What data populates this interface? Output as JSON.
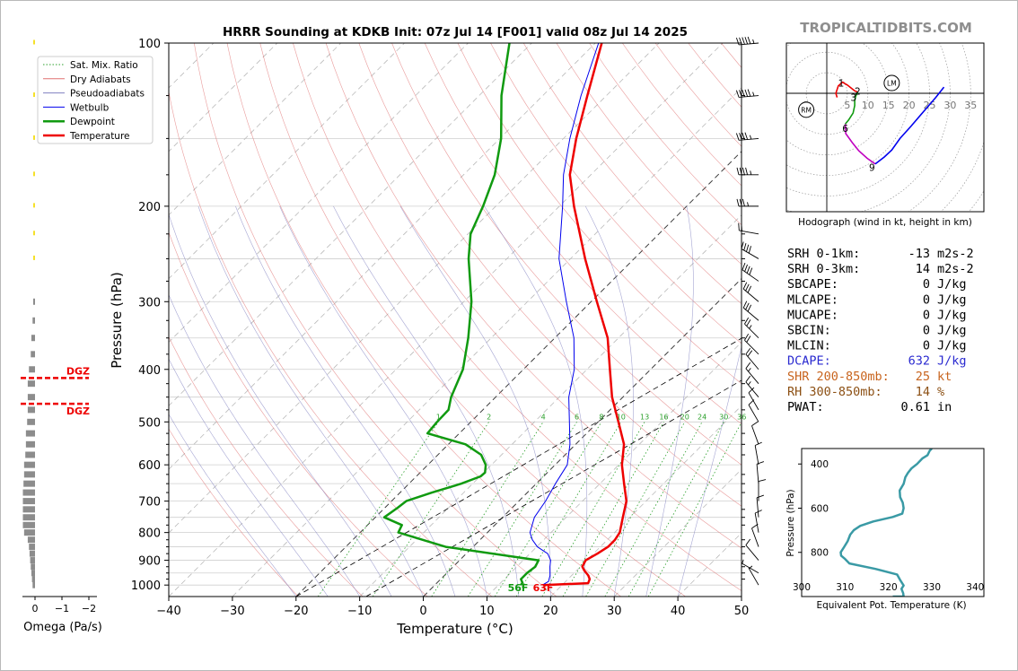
{
  "chart_data": [
    {
      "type": "line",
      "panel": "skew-t",
      "title": "HRRR Sounding at KDKB Init: 07z Jul 14 [F001] valid 08z Jul 14 2025",
      "xlabel": "Temperature (°C)",
      "ylabel": "Pressure (hPa)",
      "xlim": [
        -40,
        50
      ],
      "ylim": [
        1050,
        100
      ],
      "y_scale": "log",
      "x_ticks": [
        "−40",
        "−30",
        "−20",
        "−10",
        "0",
        "10",
        "20",
        "30",
        "40",
        "50"
      ],
      "y_ticks": [
        "100",
        "200",
        "300",
        "400",
        "500",
        "600",
        "700",
        "800",
        "900",
        "1000"
      ],
      "legend": {
        "placement": "top-left",
        "entries": [
          {
            "label": "Sat. Mix. Ratio",
            "color": "#2ca02c",
            "style": "dotted"
          },
          {
            "label": "Dry Adiabats",
            "color": "#e07070",
            "style": "solid"
          },
          {
            "label": "Pseudoadiabats",
            "color": "#8080c0",
            "style": "solid"
          },
          {
            "label": "Wetbulb",
            "color": "#0000ee",
            "style": "solid"
          },
          {
            "label": "Dewpoint",
            "color": "#109a10",
            "style": "thick"
          },
          {
            "label": "Temperature",
            "color": "#ee0000",
            "style": "thick"
          }
        ]
      },
      "mixing_ratio_labels": [
        "1",
        "2",
        "4",
        "6",
        "8",
        "10",
        "13",
        "16",
        "20",
        "24",
        "30",
        "36"
      ],
      "surface_labels": {
        "dewpoint": "56F",
        "temperature": "63F"
      },
      "series": [
        {
          "name": "Temperature",
          "color": "#ee0000",
          "points": [
            [
              1000,
              17.0
            ],
            [
              992,
              23.8
            ],
            [
              975,
              23.4
            ],
            [
              960,
              22.6
            ],
            [
              940,
              21.2
            ],
            [
              925,
              20.3
            ],
            [
              900,
              19.8
            ],
            [
              875,
              20.6
            ],
            [
              850,
              21.2
            ],
            [
              825,
              21.2
            ],
            [
              800,
              20.8
            ],
            [
              750,
              18.9
            ],
            [
              700,
              16.9
            ],
            [
              650,
              13.8
            ],
            [
              600,
              10.5
            ],
            [
              550,
              7.6
            ],
            [
              500,
              3.2
            ],
            [
              450,
              -1.7
            ],
            [
              400,
              -6.4
            ],
            [
              350,
              -11.7
            ],
            [
              300,
              -19.1
            ],
            [
              250,
              -27.7
            ],
            [
              200,
              -37.7
            ],
            [
              175,
              -43.3
            ],
            [
              150,
              -48.0
            ],
            [
              125,
              -53.0
            ],
            [
              100,
              -59.0
            ]
          ]
        },
        {
          "name": "Wetbulb",
          "color": "#0000ee",
          "points": [
            [
              1000,
              16.9
            ],
            [
              985,
              17.3
            ],
            [
              960,
              16.6
            ],
            [
              925,
              15.2
            ],
            [
              900,
              14.3
            ],
            [
              875,
              12.8
            ],
            [
              850,
              10.1
            ],
            [
              825,
              8.2
            ],
            [
              800,
              6.7
            ],
            [
              750,
              5.0
            ],
            [
              700,
              4.2
            ],
            [
              650,
              3.0
            ],
            [
              600,
              1.9
            ],
            [
              550,
              -0.9
            ],
            [
              500,
              -4.5
            ],
            [
              450,
              -8.5
            ],
            [
              400,
              -12.0
            ],
            [
              350,
              -17.0
            ],
            [
              300,
              -23.9
            ],
            [
              250,
              -31.8
            ],
            [
              200,
              -39.5
            ],
            [
              175,
              -44.3
            ],
            [
              150,
              -49.0
            ],
            [
              125,
              -54.0
            ],
            [
              100,
              -59.5
            ]
          ]
        },
        {
          "name": "Dewpoint",
          "color": "#109a10",
          "points": [
            [
              1000,
              13.5
            ],
            [
              990,
              13.4
            ],
            [
              975,
              12.6
            ],
            [
              950,
              12.6
            ],
            [
              925,
              12.9
            ],
            [
              900,
              12.4
            ],
            [
              850,
              -4.3
            ],
            [
              800,
              -14.0
            ],
            [
              775,
              -14.6
            ],
            [
              750,
              -18.6
            ],
            [
              720,
              -18.0
            ],
            [
              700,
              -17.7
            ],
            [
              675,
              -15.0
            ],
            [
              650,
              -11.8
            ],
            [
              630,
              -9.9
            ],
            [
              620,
              -9.8
            ],
            [
              600,
              -10.9
            ],
            [
              575,
              -13.2
            ],
            [
              550,
              -17.3
            ],
            [
              525,
              -25.0
            ],
            [
              500,
              -25.3
            ],
            [
              475,
              -25.4
            ],
            [
              450,
              -27.0
            ],
            [
              400,
              -29.5
            ],
            [
              350,
              -33.6
            ],
            [
              300,
              -38.8
            ],
            [
              250,
              -46.0
            ],
            [
              225,
              -49.6
            ],
            [
              200,
              -52.0
            ],
            [
              175,
              -55.1
            ],
            [
              150,
              -59.8
            ],
            [
              125,
              -66.5
            ],
            [
              100,
              -73.5
            ]
          ]
        }
      ],
      "wind_barbs_kt": [
        {
          "p": 100,
          "speed": 55,
          "dir": 265
        },
        {
          "p": 125,
          "speed": 55,
          "dir": 265
        },
        {
          "p": 150,
          "speed": 45,
          "dir": 265
        },
        {
          "p": 175,
          "speed": 45,
          "dir": 270
        },
        {
          "p": 200,
          "speed": 35,
          "dir": 270
        },
        {
          "p": 225,
          "speed": 20,
          "dir": 280
        },
        {
          "p": 250,
          "speed": 40,
          "dir": 300
        },
        {
          "p": 275,
          "speed": 40,
          "dir": 305
        },
        {
          "p": 300,
          "speed": 30,
          "dir": 310
        },
        {
          "p": 325,
          "speed": 30,
          "dir": 310
        },
        {
          "p": 350,
          "speed": 25,
          "dir": 315
        },
        {
          "p": 375,
          "speed": 20,
          "dir": 315
        },
        {
          "p": 400,
          "speed": 20,
          "dir": 320
        },
        {
          "p": 425,
          "speed": 15,
          "dir": 320
        },
        {
          "p": 450,
          "speed": 15,
          "dir": 320
        },
        {
          "p": 475,
          "speed": 10,
          "dir": 330
        },
        {
          "p": 500,
          "speed": 10,
          "dir": 330
        },
        {
          "p": 550,
          "speed": 10,
          "dir": 340
        },
        {
          "p": 600,
          "speed": 10,
          "dir": 350
        },
        {
          "p": 650,
          "speed": 10,
          "dir": 355
        },
        {
          "p": 700,
          "speed": 10,
          "dir": 360
        },
        {
          "p": 750,
          "speed": 10,
          "dir": 355
        },
        {
          "p": 800,
          "speed": 10,
          "dir": 350
        },
        {
          "p": 850,
          "speed": 10,
          "dir": 340
        },
        {
          "p": 900,
          "speed": 10,
          "dir": 320
        },
        {
          "p": 950,
          "speed": 5,
          "dir": 300
        },
        {
          "p": 1000,
          "speed": 5,
          "dir": 330
        }
      ]
    },
    {
      "type": "bar",
      "panel": "omega",
      "xlabel": "Omega (Pa/s)",
      "x_ticks": [
        "0",
        "−1",
        "−2"
      ],
      "xlim": [
        0.3,
        -2.2
      ],
      "dgz_label": "DGZ",
      "dgz_bounds_hpa": [
        415,
        463
      ],
      "points": [
        [
          100,
          -0.05
        ],
        [
          125,
          -0.05
        ],
        [
          150,
          -0.06
        ],
        [
          175,
          -0.05
        ],
        [
          200,
          -0.06
        ],
        [
          225,
          -0.06
        ],
        [
          250,
          -0.07
        ],
        [
          300,
          -0.1
        ],
        [
          325,
          -0.2
        ],
        [
          350,
          -0.3
        ],
        [
          375,
          -0.35
        ],
        [
          400,
          -0.5
        ],
        [
          425,
          -0.6
        ],
        [
          450,
          -0.6
        ],
        [
          475,
          -0.6
        ],
        [
          500,
          -0.65
        ],
        [
          525,
          -0.75
        ],
        [
          550,
          -0.75
        ],
        [
          575,
          -0.8
        ],
        [
          600,
          -0.9
        ],
        [
          625,
          -0.9
        ],
        [
          650,
          -0.95
        ],
        [
          675,
          -1.0
        ],
        [
          700,
          -1.0
        ],
        [
          725,
          -1.0
        ],
        [
          750,
          -1.0
        ],
        [
          775,
          -1.0
        ],
        [
          800,
          -0.9
        ],
        [
          825,
          -0.6
        ],
        [
          850,
          -0.5
        ],
        [
          875,
          -0.45
        ],
        [
          900,
          -0.4
        ],
        [
          925,
          -0.35
        ],
        [
          950,
          -0.3
        ],
        [
          975,
          -0.25
        ],
        [
          1000,
          -0.2
        ]
      ],
      "bar_color_high": "#f5e02a",
      "bar_color_low": "#8c8c8c"
    },
    {
      "type": "line",
      "panel": "hodograph",
      "xlabel": "Hodograph (wind in kt, height in km)",
      "ring_labels": [
        "5",
        "5",
        "10",
        "15",
        "20",
        "25",
        "30",
        "35"
      ],
      "markers": [
        "LM",
        "RM"
      ],
      "height_labels": [
        {
          "km": "1",
          "u": 3.5,
          "v": 2.5
        },
        {
          "km": "2",
          "u": 7.5,
          "v": 0.5
        },
        {
          "km": "3",
          "u": 6.5,
          "v": -1.0
        },
        {
          "km": "6",
          "u": 4.5,
          "v": -8.5
        },
        {
          "km": "9",
          "u": 11.0,
          "v": -18.0
        }
      ],
      "segments": [
        {
          "color": "#ee0000",
          "points": [
            [
              2.5,
              -1.0
            ],
            [
              2.2,
              0
            ],
            [
              2.8,
              1.8
            ],
            [
              3.8,
              2.7
            ],
            [
              5,
              2.0
            ],
            [
              6.8,
              0.6
            ],
            [
              7.5,
              0.3
            ]
          ]
        },
        {
          "color": "#109a10",
          "points": [
            [
              7.5,
              0.3
            ],
            [
              7.0,
              -0.8
            ],
            [
              6.8,
              -1.8
            ],
            [
              6.8,
              -3.0
            ],
            [
              6.4,
              -4.8
            ],
            [
              5.3,
              -6.5
            ],
            [
              4.5,
              -7.5
            ]
          ]
        },
        {
          "color": "#c000c0",
          "points": [
            [
              4.5,
              -7.5
            ],
            [
              4.6,
              -9.8
            ],
            [
              6.2,
              -12.0
            ],
            [
              7.8,
              -14.0
            ],
            [
              9.8,
              -15.8
            ],
            [
              11.8,
              -17.2
            ]
          ]
        },
        {
          "color": "#0000ee",
          "points": [
            [
              11.8,
              -17.2
            ],
            [
              14.0,
              -15.5
            ],
            [
              15.8,
              -13.8
            ],
            [
              17.8,
              -11.0
            ],
            [
              20.5,
              -8.0
            ],
            [
              23.5,
              -4.5
            ],
            [
              26.5,
              -1.0
            ],
            [
              28.5,
              1.5
            ]
          ]
        }
      ],
      "lm_point": [
        15.8,
        2.5
      ],
      "rm_point": [
        -5.0,
        -4.0
      ],
      "xlim": [
        -7,
        38
      ],
      "ylim": [
        -20,
        9
      ]
    },
    {
      "type": "line",
      "panel": "theta-e",
      "ylabel": "Pressure (hPa)",
      "xlabel": "Equivalent Pot. Temperature (K)",
      "x_ticks": [
        "300",
        "310",
        "320",
        "330",
        "340"
      ],
      "y_ticks": [
        "400",
        "600",
        "800"
      ],
      "xlim": [
        300,
        342
      ],
      "ylim": [
        1000,
        330
      ],
      "color": "#3a9aa5",
      "points": [
        [
          330,
          330.0
        ],
        [
          340,
          329.5
        ],
        [
          360,
          329.0
        ],
        [
          375,
          327.8
        ],
        [
          400,
          326.6
        ],
        [
          420,
          325.3
        ],
        [
          440,
          324.5
        ],
        [
          460,
          323.9
        ],
        [
          490,
          323.5
        ],
        [
          520,
          322.6
        ],
        [
          550,
          322.7
        ],
        [
          575,
          323.3
        ],
        [
          600,
          323.5
        ],
        [
          625,
          323.2
        ],
        [
          640,
          321.0
        ],
        [
          660,
          316.5
        ],
        [
          680,
          313.5
        ],
        [
          700,
          312.0
        ],
        [
          720,
          311.2
        ],
        [
          750,
          310.6
        ],
        [
          775,
          309.8
        ],
        [
          800,
          309.0
        ],
        [
          815,
          309.1
        ],
        [
          830,
          310.0
        ],
        [
          850,
          311.0
        ],
        [
          875,
          317.0
        ],
        [
          900,
          322.0
        ],
        [
          925,
          322.7
        ],
        [
          950,
          323.5
        ],
        [
          965,
          323.0
        ],
        [
          985,
          323.4
        ],
        [
          1000,
          323.5
        ],
        [
          1000,
          321.0
        ]
      ]
    }
  ],
  "branding": {
    "site": "TROPICALTIDBITS.COM"
  },
  "stats": [
    {
      "key": "SRH 0-1km:",
      "value": "-13",
      "unit": "m2s-2",
      "color": "#000000"
    },
    {
      "key": "SRH 0-3km:",
      "value": "14",
      "unit": "m2s-2",
      "color": "#000000"
    },
    {
      "key": "SBCAPE:",
      "value": "0",
      "unit": "J/kg",
      "color": "#000000"
    },
    {
      "key": "MLCAPE:",
      "value": "0",
      "unit": "J/kg",
      "color": "#000000"
    },
    {
      "key": "MUCAPE:",
      "value": "0",
      "unit": "J/kg",
      "color": "#000000"
    },
    {
      "key": "SBCIN:",
      "value": "0",
      "unit": "J/kg",
      "color": "#000000"
    },
    {
      "key": "MLCIN:",
      "value": "0",
      "unit": "J/kg",
      "color": "#000000"
    },
    {
      "key": "DCAPE:",
      "value": "632",
      "unit": "J/kg",
      "color": "#2a2ad0"
    },
    {
      "key": "SHR 200-850mb:",
      "value": "25",
      "unit": "kt",
      "color": "#c8641e"
    },
    {
      "key": "RH 300-850mb:",
      "value": "14",
      "unit": "%",
      "color": "#8c5014"
    },
    {
      "key": "PWAT:",
      "value": "0.61",
      "unit": "in",
      "color": "#000000"
    }
  ]
}
